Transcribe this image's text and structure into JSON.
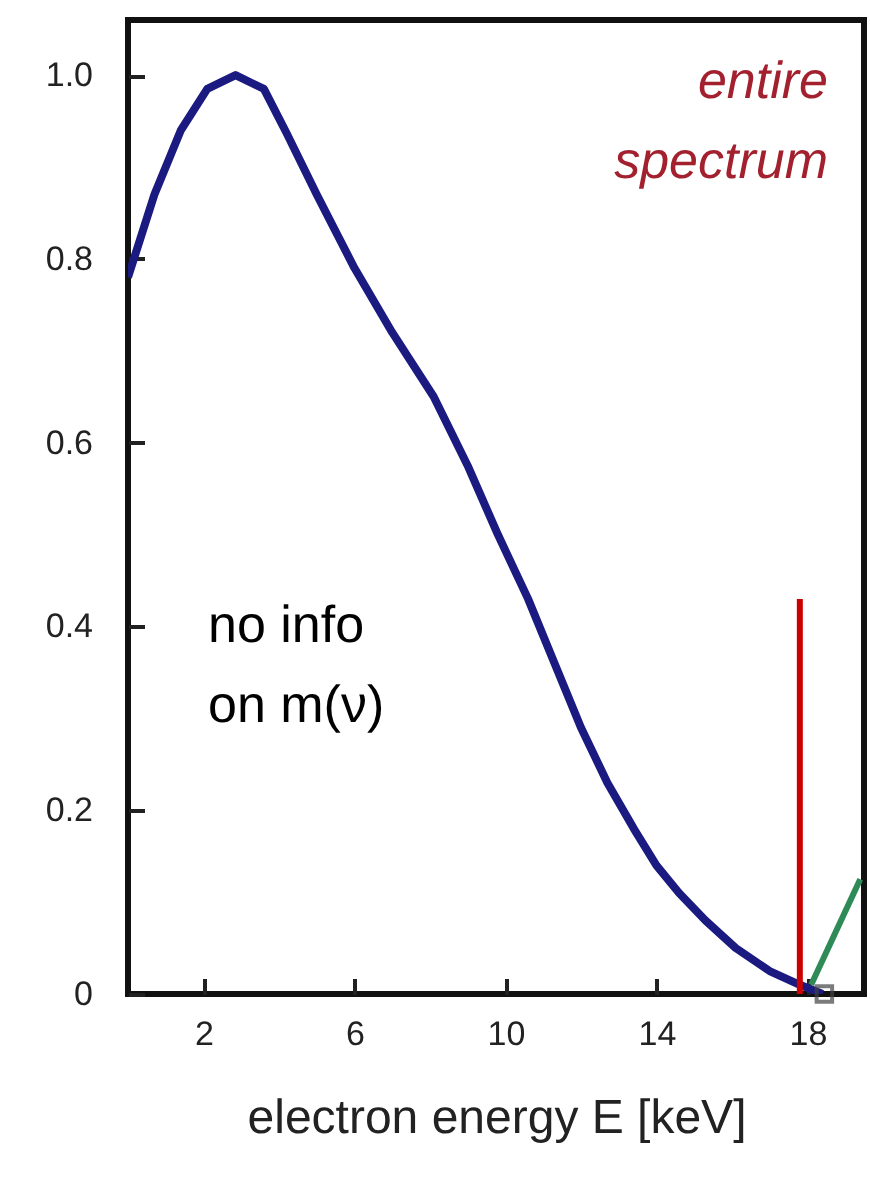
{
  "chart_data": {
    "type": "line",
    "xlabel": "electron energy E [keV]",
    "xlim": [
      0,
      19.5
    ],
    "ylim": [
      0,
      1.06
    ],
    "xticks": [
      2,
      6,
      10,
      14,
      18
    ],
    "yticks": [
      0,
      0.2,
      0.4,
      0.6,
      0.8,
      {
        "value": 1,
        "label": "1.0"
      }
    ],
    "annotations": [
      "entire\nspectrum",
      "no info\non m(ν)"
    ],
    "series": [
      {
        "color": "#1a1a80",
        "x": [
          0,
          0.7,
          1.4,
          2.1,
          2.85,
          3.6,
          4.2,
          5.0,
          6.0,
          7.0,
          8.1,
          9.0,
          9.8,
          10.6,
          11.3,
          12.0,
          12.7,
          13.4,
          14.0,
          14.6,
          15.3,
          16.1,
          17.0,
          17.8,
          18.4
        ],
        "values": [
          0.78,
          0.87,
          0.94,
          0.985,
          1.0,
          0.985,
          0.937,
          0.87,
          0.79,
          0.72,
          0.65,
          0.575,
          0.5,
          0.43,
          0.36,
          0.29,
          0.23,
          0.18,
          0.14,
          0.11,
          0.08,
          0.05,
          0.025,
          0.01,
          0
        ]
      },
      {
        "color": "#cc0000",
        "x": [
          17.8,
          17.8
        ],
        "values": [
          0,
          0.43
        ]
      },
      {
        "color": "#2e8b57",
        "x": [
          18.1,
          19.4
        ],
        "values": [
          0.01,
          0.125
        ]
      },
      {
        "type": "scatter",
        "marker": "square",
        "color": "#444444",
        "x": [
          18.45
        ],
        "values": [
          0
        ]
      }
    ]
  }
}
